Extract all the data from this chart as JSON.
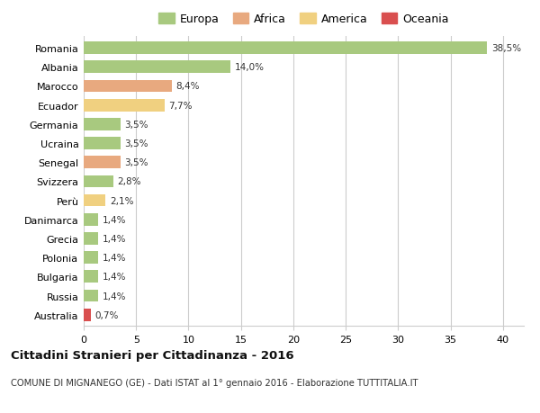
{
  "countries": [
    "Romania",
    "Albania",
    "Marocco",
    "Ecuador",
    "Germania",
    "Ucraina",
    "Senegal",
    "Svizzera",
    "Perù",
    "Danimarca",
    "Grecia",
    "Polonia",
    "Bulgaria",
    "Russia",
    "Australia"
  ],
  "values": [
    38.5,
    14.0,
    8.4,
    7.7,
    3.5,
    3.5,
    3.5,
    2.8,
    2.1,
    1.4,
    1.4,
    1.4,
    1.4,
    1.4,
    0.7
  ],
  "labels": [
    "38,5%",
    "14,0%",
    "8,4%",
    "7,7%",
    "3,5%",
    "3,5%",
    "3,5%",
    "2,8%",
    "2,1%",
    "1,4%",
    "1,4%",
    "1,4%",
    "1,4%",
    "1,4%",
    "0,7%"
  ],
  "colors": [
    "#a8c97f",
    "#a8c97f",
    "#e8a97f",
    "#f0d080",
    "#a8c97f",
    "#a8c97f",
    "#e8a97f",
    "#a8c97f",
    "#f0d080",
    "#a8c97f",
    "#a8c97f",
    "#a8c97f",
    "#a8c97f",
    "#a8c97f",
    "#d94f4f"
  ],
  "legend": [
    {
      "label": "Europa",
      "color": "#a8c97f"
    },
    {
      "label": "Africa",
      "color": "#e8a97f"
    },
    {
      "label": "America",
      "color": "#f0d080"
    },
    {
      "label": "Oceania",
      "color": "#d94f4f"
    }
  ],
  "title": "Cittadini Stranieri per Cittadinanza - 2016",
  "subtitle": "COMUNE DI MIGNANEGO (GE) - Dati ISTAT al 1° gennaio 2016 - Elaborazione TUTTITALIA.IT",
  "xlim": [
    0,
    42
  ],
  "xticks": [
    0,
    5,
    10,
    15,
    20,
    25,
    30,
    35,
    40
  ],
  "background_color": "#ffffff",
  "grid_color": "#cccccc",
  "bar_height": 0.65,
  "figsize": [
    6.0,
    4.6
  ],
  "dpi": 100
}
